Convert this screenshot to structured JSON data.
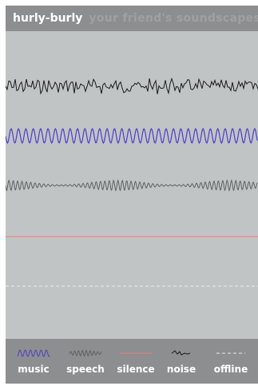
{
  "header": {
    "brand": "hurly-burly",
    "subtitle": "your friend's soundscapes"
  },
  "colors": {
    "music": "#4a3fc9",
    "speech": "#5e6061",
    "silence": "#e27f84",
    "noise": "#1a1a1a",
    "offline": "#ecedee"
  },
  "channels": [
    {
      "name": "noise-channel",
      "kind": "noise"
    },
    {
      "name": "music-channel",
      "kind": "music"
    },
    {
      "name": "speech-channel",
      "kind": "speech"
    },
    {
      "name": "silence-channel",
      "kind": "silence"
    },
    {
      "name": "offline-channel",
      "kind": "offline"
    }
  ],
  "legend": [
    {
      "kind": "music",
      "label": "music"
    },
    {
      "kind": "speech",
      "label": "speech"
    },
    {
      "kind": "silence",
      "label": "silence"
    },
    {
      "kind": "noise",
      "label": "noise"
    },
    {
      "kind": "offline",
      "label": "offline"
    }
  ]
}
